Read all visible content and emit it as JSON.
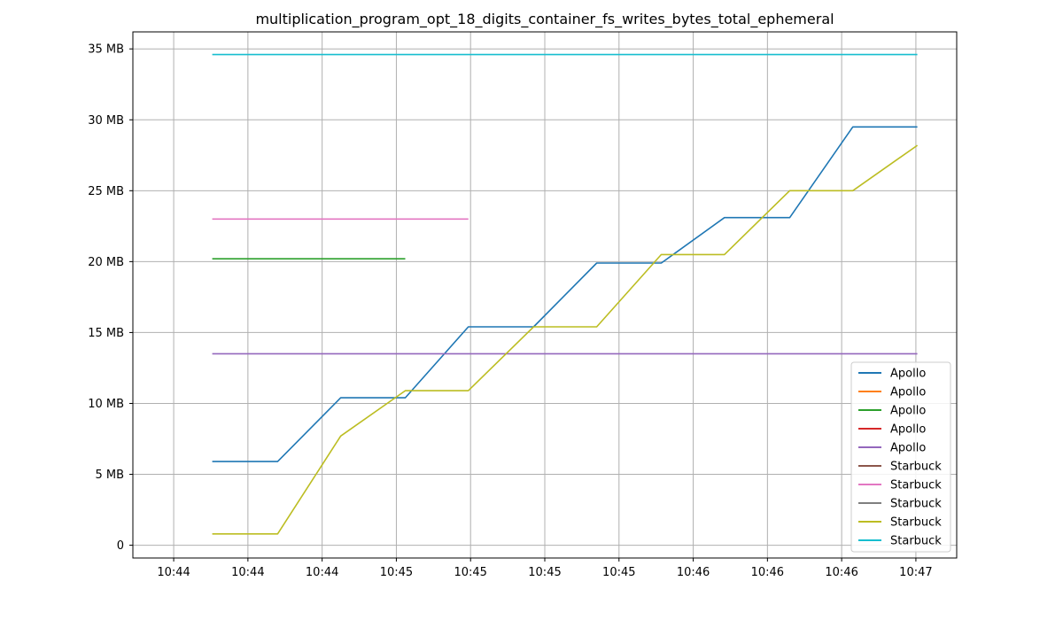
{
  "chart_data": {
    "type": "line",
    "title": "multiplication_program_opt_18_digits_container_fs_writes_bytes_total_ephemeral",
    "xlabel": "",
    "ylabel": "",
    "ylim": [
      -0.9,
      36.2
    ],
    "xlim": [
      -0.55,
      10.55
    ],
    "yticks": [
      0,
      5,
      10,
      15,
      20,
      25,
      30,
      35
    ],
    "ytick_labels": [
      "0",
      "5 MB",
      "10 MB",
      "15 MB",
      "20 MB",
      "25 MB",
      "30 MB",
      "35 MB"
    ],
    "xticks": [
      0,
      1,
      2,
      3,
      4,
      5,
      6,
      7,
      8,
      9,
      10
    ],
    "xtick_labels": [
      "10:44",
      "10:44",
      "10:44",
      "10:45",
      "10:45",
      "10:45",
      "10:45",
      "10:46",
      "10:46",
      "10:46",
      "10:47"
    ],
    "grid": true,
    "legend_position": "lower-right",
    "series": [
      {
        "name": "Apollo",
        "color": "#1f77b4",
        "x": [
          0.52,
          1.4,
          2.25,
          3.12,
          3.97,
          4.85,
          5.7,
          6.57,
          7.42,
          8.3,
          9.15,
          10.02
        ],
        "y": [
          5.9,
          5.9,
          10.4,
          10.4,
          15.4,
          15.4,
          19.9,
          19.9,
          23.1,
          23.1,
          29.5,
          29.5
        ]
      },
      {
        "name": "Apollo",
        "color": "#ff7f0e",
        "x": [],
        "y": []
      },
      {
        "name": "Apollo",
        "color": "#2ca02c",
        "x": [
          0.52,
          3.12
        ],
        "y": [
          20.2,
          20.2
        ]
      },
      {
        "name": "Apollo",
        "color": "#d62728",
        "x": [],
        "y": []
      },
      {
        "name": "Apollo",
        "color": "#9467bd",
        "x": [
          0.52,
          10.02
        ],
        "y": [
          13.5,
          13.5
        ]
      },
      {
        "name": "Starbuck",
        "color": "#8c564b",
        "x": [],
        "y": []
      },
      {
        "name": "Starbuck",
        "color": "#e377c2",
        "x": [
          0.52,
          3.97
        ],
        "y": [
          23.0,
          23.0
        ]
      },
      {
        "name": "Starbuck",
        "color": "#7f7f7f",
        "x": [],
        "y": []
      },
      {
        "name": "Starbuck",
        "color": "#bcbd22",
        "x": [
          0.52,
          1.4,
          2.25,
          3.12,
          3.97,
          4.85,
          5.7,
          6.57,
          7.42,
          8.3,
          9.15,
          10.02
        ],
        "y": [
          0.8,
          0.8,
          7.7,
          10.9,
          10.9,
          15.4,
          15.4,
          20.5,
          20.5,
          25.0,
          25.0,
          28.2
        ]
      },
      {
        "name": "Starbuck",
        "color": "#17becf",
        "x": [
          0.52,
          10.02
        ],
        "y": [
          34.6,
          34.6
        ]
      }
    ]
  }
}
